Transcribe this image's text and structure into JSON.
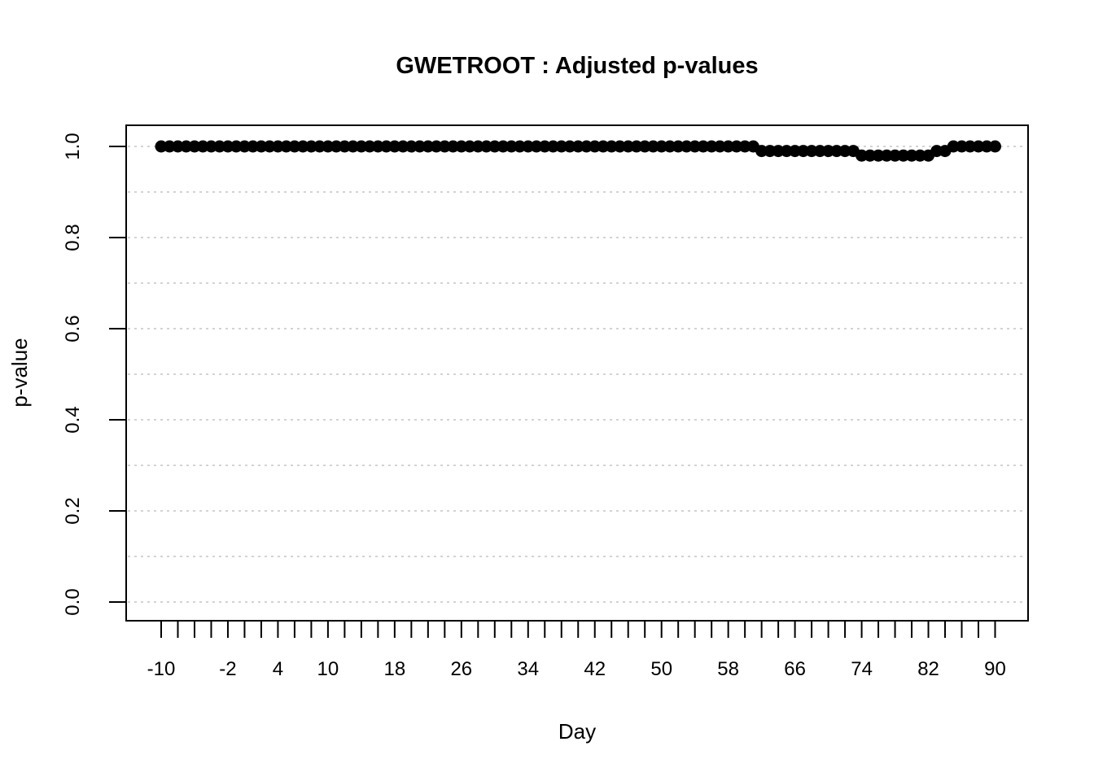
{
  "style": {
    "background_color": "#ffffff",
    "point_color": "#000000",
    "grid_color": "#d3d3d3",
    "axis_color": "#000000",
    "text_color": "#000000"
  },
  "chart_data": {
    "type": "scatter",
    "title": "GWETROOT : Adjusted p-values",
    "xlabel": "Day",
    "ylabel": "p-value",
    "xlim": [
      -10,
      90
    ],
    "ylim": [
      0,
      1
    ],
    "grid": "dotted horizontal lines every 0.1 from 0.0 to 1.0",
    "grid_step": 0.1,
    "x_tick_start": -10,
    "x_tick_end": 90,
    "x_tick_step": 2,
    "x_tick_labels": [
      {
        "day": -10,
        "label": "-10"
      },
      {
        "day": -2,
        "label": "-2"
      },
      {
        "day": 4,
        "label": "4"
      },
      {
        "day": 10,
        "label": "10"
      },
      {
        "day": 18,
        "label": "18"
      },
      {
        "day": 26,
        "label": "26"
      },
      {
        "day": 34,
        "label": "34"
      },
      {
        "day": 42,
        "label": "42"
      },
      {
        "day": 50,
        "label": "50"
      },
      {
        "day": 58,
        "label": "58"
      },
      {
        "day": 66,
        "label": "66"
      },
      {
        "day": 74,
        "label": "74"
      },
      {
        "day": 82,
        "label": "82"
      },
      {
        "day": 90,
        "label": "90"
      }
    ],
    "y_tick_labels": [
      {
        "value": 0.0,
        "label": "0.0"
      },
      {
        "value": 0.2,
        "label": "0.2"
      },
      {
        "value": 0.4,
        "label": "0.4"
      },
      {
        "value": 0.6,
        "label": "0.6"
      },
      {
        "value": 0.8,
        "label": "0.8"
      },
      {
        "value": 1.0,
        "label": "1.0"
      }
    ],
    "marker": "filled-circle",
    "series": {
      "name": "adjusted p-value",
      "x_start": -10,
      "x_step": 1,
      "n": 101,
      "values": [
        1,
        1,
        1,
        1,
        1,
        1,
        1,
        1,
        1,
        1,
        1,
        1,
        1,
        1,
        1,
        1,
        1,
        1,
        1,
        1,
        1,
        1,
        1,
        1,
        1,
        1,
        1,
        1,
        1,
        1,
        1,
        1,
        1,
        1,
        1,
        1,
        1,
        1,
        1,
        1,
        1,
        1,
        1,
        1,
        1,
        1,
        1,
        1,
        1,
        1,
        1,
        1,
        1,
        1,
        1,
        1,
        1,
        1,
        1,
        1,
        1,
        1,
        1,
        1,
        1,
        1,
        1,
        1,
        1,
        1,
        1,
        1,
        0.99,
        0.99,
        0.99,
        0.99,
        0.99,
        0.99,
        0.99,
        0.99,
        0.99,
        0.99,
        0.99,
        0.99,
        0.98,
        0.98,
        0.98,
        0.98,
        0.98,
        0.98,
        0.98,
        0.98,
        0.98,
        0.99,
        0.99,
        1,
        1,
        1,
        1,
        1,
        1
      ]
    }
  }
}
